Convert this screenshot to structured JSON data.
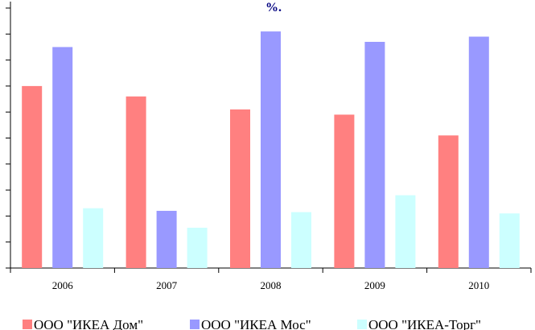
{
  "chart_data": {
    "type": "bar",
    "title": "%.",
    "categories": [
      "2006",
      "2007",
      "2008",
      "2009",
      "2010"
    ],
    "series": [
      {
        "name": "ООО \"ИКЕА Дом\"",
        "color": "#ff8080",
        "values": [
          7.0,
          6.6,
          6.1,
          5.9,
          5.1
        ]
      },
      {
        "name": "ООО \"ИКЕА Мос\"",
        "color": "#9999ff",
        "values": [
          8.5,
          2.2,
          9.1,
          8.7,
          8.9
        ]
      },
      {
        "name": "ООО \"ИКЕА-Торг\"",
        "color": "#ccffff",
        "values": [
          2.3,
          1.55,
          2.15,
          2.8,
          2.1
        ]
      }
    ],
    "ylim": [
      0,
      10
    ],
    "y_tick_step": 1,
    "grid": false,
    "legend_position": "bottom"
  }
}
